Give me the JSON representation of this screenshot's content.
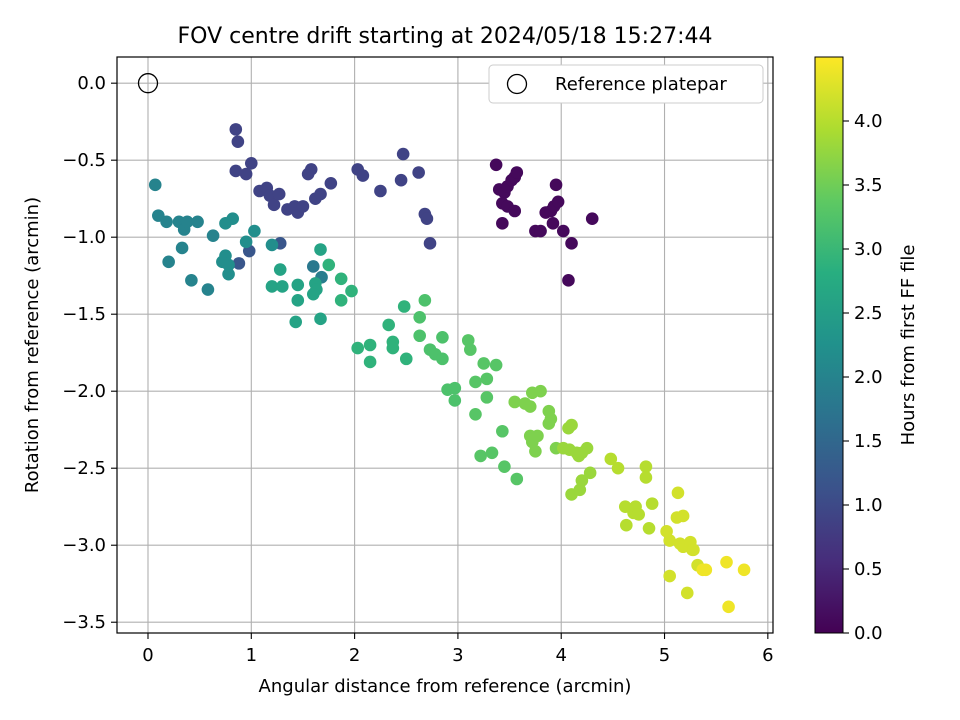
{
  "chart_data": {
    "type": "scatter",
    "title": "FOV centre drift starting at 2024/05/18 15:27:44",
    "xlabel": "Angular distance from reference (arcmin)",
    "ylabel": "Rotation from reference (arcmin)",
    "xlim": [
      -0.3,
      6.05
    ],
    "ylim": [
      -3.57,
      0.17
    ],
    "xticks": [
      "0",
      "1",
      "2",
      "3",
      "4",
      "5",
      "6"
    ],
    "xtick_values": [
      0,
      1,
      2,
      3,
      4,
      5,
      6
    ],
    "yticks": [
      "0.0",
      "−0.5",
      "−1.0",
      "−1.5",
      "−2.0",
      "−2.5",
      "−3.0",
      "−3.5"
    ],
    "ytick_values": [
      0,
      -0.5,
      -1.0,
      -1.5,
      -2.0,
      -2.5,
      -3.0,
      -3.5
    ],
    "grid": true,
    "legend": {
      "label": "Reference platepar",
      "placement": "top-right"
    },
    "reference_point": {
      "x": 0.0,
      "y": 0.0
    },
    "colorbar": {
      "label": "Hours from first FF file",
      "colormap": "viridis",
      "min": 0.0,
      "max": 4.5,
      "ticks": [
        "0.0",
        "0.5",
        "1.0",
        "1.5",
        "2.0",
        "2.5",
        "3.0",
        "3.5",
        "4.0"
      ],
      "tick_values": [
        0,
        0.5,
        1.0,
        1.5,
        2.0,
        2.5,
        3.0,
        3.5,
        4.0
      ]
    },
    "points": [
      [
        3.37,
        -0.53,
        0.1
      ],
      [
        3.4,
        -0.69,
        0.1
      ],
      [
        3.45,
        -0.71,
        0.1
      ],
      [
        3.48,
        -0.67,
        0.1
      ],
      [
        3.52,
        -0.63,
        0.1
      ],
      [
        3.55,
        -0.61,
        0.1
      ],
      [
        3.57,
        -0.58,
        0.1
      ],
      [
        3.43,
        -0.78,
        0.1
      ],
      [
        3.48,
        -0.8,
        0.1
      ],
      [
        3.55,
        -0.83,
        0.1
      ],
      [
        3.43,
        -0.91,
        0.1
      ],
      [
        3.75,
        -0.96,
        0.1
      ],
      [
        3.8,
        -0.96,
        0.1
      ],
      [
        3.85,
        -0.84,
        0.1
      ],
      [
        3.9,
        -0.83,
        0.1
      ],
      [
        3.93,
        -0.8,
        0.1
      ],
      [
        3.95,
        -0.66,
        0.1
      ],
      [
        3.97,
        -0.77,
        0.1
      ],
      [
        3.92,
        -0.91,
        0.1
      ],
      [
        4.02,
        -0.96,
        0.1
      ],
      [
        4.1,
        -1.04,
        0.1
      ],
      [
        4.3,
        -0.88,
        0.1
      ],
      [
        4.07,
        -1.28,
        0.1
      ],
      [
        0.95,
        -0.59,
        0.9
      ],
      [
        1.0,
        -0.52,
        0.9
      ],
      [
        0.85,
        -0.3,
        0.9
      ],
      [
        0.87,
        -0.38,
        0.9
      ],
      [
        0.85,
        -0.57,
        0.9
      ],
      [
        1.08,
        -0.7,
        0.9
      ],
      [
        1.15,
        -0.68,
        0.9
      ],
      [
        1.18,
        -0.73,
        0.9
      ],
      [
        1.22,
        -0.79,
        0.9
      ],
      [
        1.27,
        -0.72,
        0.9
      ],
      [
        1.35,
        -0.82,
        0.9
      ],
      [
        1.42,
        -0.8,
        0.9
      ],
      [
        1.45,
        -0.84,
        0.9
      ],
      [
        1.5,
        -0.8,
        0.9
      ],
      [
        1.55,
        -0.59,
        0.9
      ],
      [
        1.58,
        -0.56,
        0.9
      ],
      [
        1.62,
        -0.75,
        0.9
      ],
      [
        1.67,
        -0.72,
        0.9
      ],
      [
        1.77,
        -0.65,
        0.9
      ],
      [
        2.03,
        -0.56,
        0.9
      ],
      [
        2.08,
        -0.6,
        0.9
      ],
      [
        2.25,
        -0.7,
        0.9
      ],
      [
        2.45,
        -0.63,
        0.9
      ],
      [
        2.47,
        -0.46,
        0.9
      ],
      [
        2.62,
        -0.58,
        0.9
      ],
      [
        2.68,
        -0.85,
        0.9
      ],
      [
        2.7,
        -0.88,
        0.9
      ],
      [
        2.73,
        -1.04,
        0.9
      ],
      [
        1.28,
        -1.04,
        1.2
      ],
      [
        0.98,
        -1.09,
        1.2
      ],
      [
        0.88,
        -1.17,
        1.2
      ],
      [
        0.07,
        -0.66,
        2.0
      ],
      [
        0.1,
        -0.86,
        2.0
      ],
      [
        0.18,
        -0.9,
        2.0
      ],
      [
        0.3,
        -0.9,
        2.0
      ],
      [
        0.35,
        -0.95,
        2.0
      ],
      [
        0.38,
        -0.9,
        2.0
      ],
      [
        0.48,
        -0.9,
        2.0
      ],
      [
        0.2,
        -1.16,
        2.0
      ],
      [
        0.33,
        -1.07,
        2.0
      ],
      [
        0.42,
        -1.28,
        2.0
      ],
      [
        0.58,
        -1.34,
        2.0
      ],
      [
        0.63,
        -0.99,
        2.0
      ],
      [
        1.6,
        -1.19,
        1.8
      ],
      [
        1.68,
        -1.26,
        1.9
      ],
      [
        0.75,
        -0.91,
        2.2
      ],
      [
        0.82,
        -0.88,
        2.2
      ],
      [
        0.75,
        -1.12,
        2.2
      ],
      [
        0.78,
        -1.18,
        2.2
      ],
      [
        0.72,
        -1.16,
        2.2
      ],
      [
        0.78,
        -1.24,
        2.2
      ],
      [
        0.95,
        -1.03,
        2.2
      ],
      [
        1.03,
        -0.96,
        2.2
      ],
      [
        1.2,
        -1.05,
        2.2
      ],
      [
        1.28,
        -1.21,
        2.6
      ],
      [
        1.2,
        -1.32,
        2.6
      ],
      [
        1.3,
        -1.32,
        2.6
      ],
      [
        1.45,
        -1.31,
        2.6
      ],
      [
        1.45,
        -1.41,
        2.6
      ],
      [
        1.62,
        -1.3,
        2.6
      ],
      [
        1.67,
        -1.08,
        2.6
      ],
      [
        1.63,
        -1.34,
        2.6
      ],
      [
        1.6,
        -1.37,
        2.6
      ],
      [
        1.43,
        -1.55,
        2.6
      ],
      [
        1.67,
        -1.53,
        2.6
      ],
      [
        1.75,
        -1.18,
        2.9
      ],
      [
        1.87,
        -1.27,
        2.9
      ],
      [
        1.87,
        -1.41,
        2.9
      ],
      [
        1.97,
        -1.35,
        2.9
      ],
      [
        2.03,
        -1.72,
        2.9
      ],
      [
        2.15,
        -1.7,
        2.9
      ],
      [
        2.15,
        -1.81,
        2.9
      ],
      [
        2.33,
        -1.57,
        2.9
      ],
      [
        2.37,
        -1.68,
        2.9
      ],
      [
        2.37,
        -1.72,
        2.9
      ],
      [
        2.48,
        -1.45,
        2.9
      ],
      [
        2.5,
        -1.79,
        2.9
      ],
      [
        2.63,
        -1.52,
        3.2
      ],
      [
        2.63,
        -1.64,
        3.2
      ],
      [
        2.68,
        -1.41,
        3.2
      ],
      [
        2.73,
        -1.73,
        3.2
      ],
      [
        2.78,
        -1.76,
        3.2
      ],
      [
        2.85,
        -1.79,
        3.2
      ],
      [
        2.85,
        -1.65,
        3.2
      ],
      [
        2.9,
        -1.99,
        3.2
      ],
      [
        2.97,
        -1.98,
        3.2
      ],
      [
        2.97,
        -2.06,
        3.2
      ],
      [
        3.1,
        -1.67,
        3.3
      ],
      [
        3.12,
        -1.73,
        3.3
      ],
      [
        3.17,
        -1.94,
        3.3
      ],
      [
        3.17,
        -2.15,
        3.3
      ],
      [
        3.25,
        -1.82,
        3.3
      ],
      [
        3.28,
        -1.92,
        3.3
      ],
      [
        3.28,
        -2.04,
        3.3
      ],
      [
        3.37,
        -1.83,
        3.3
      ],
      [
        3.22,
        -2.42,
        3.3
      ],
      [
        3.33,
        -2.4,
        3.3
      ],
      [
        3.43,
        -2.26,
        3.3
      ],
      [
        3.45,
        -2.49,
        3.3
      ],
      [
        3.57,
        -2.57,
        3.3
      ],
      [
        3.55,
        -2.07,
        3.6
      ],
      [
        3.65,
        -2.08,
        3.6
      ],
      [
        3.7,
        -2.1,
        3.6
      ],
      [
        3.72,
        -2.01,
        3.6
      ],
      [
        3.7,
        -2.29,
        3.6
      ],
      [
        3.72,
        -2.33,
        3.6
      ],
      [
        3.75,
        -2.39,
        3.6
      ],
      [
        3.8,
        -2.0,
        3.6
      ],
      [
        3.77,
        -2.29,
        3.6
      ],
      [
        3.88,
        -2.13,
        3.6
      ],
      [
        3.88,
        -2.21,
        3.6
      ],
      [
        3.9,
        -2.18,
        3.6
      ],
      [
        3.95,
        -2.37,
        3.6
      ],
      [
        4.02,
        -2.37,
        3.8
      ],
      [
        4.07,
        -2.24,
        3.8
      ],
      [
        4.08,
        -2.38,
        3.8
      ],
      [
        4.1,
        -2.22,
        3.8
      ],
      [
        4.15,
        -2.4,
        3.8
      ],
      [
        4.17,
        -2.42,
        3.8
      ],
      [
        4.2,
        -2.4,
        3.8
      ],
      [
        4.25,
        -2.37,
        3.8
      ],
      [
        4.1,
        -2.67,
        3.8
      ],
      [
        4.18,
        -2.64,
        3.8
      ],
      [
        4.2,
        -2.58,
        3.8
      ],
      [
        4.28,
        -2.53,
        3.8
      ],
      [
        4.48,
        -2.44,
        4.0
      ],
      [
        4.55,
        -2.5,
        4.0
      ],
      [
        4.62,
        -2.75,
        4.0
      ],
      [
        4.63,
        -2.87,
        4.0
      ],
      [
        4.7,
        -2.79,
        4.0
      ],
      [
        4.72,
        -2.75,
        4.0
      ],
      [
        4.75,
        -2.8,
        4.0
      ],
      [
        4.82,
        -2.49,
        4.0
      ],
      [
        4.82,
        -2.56,
        4.0
      ],
      [
        4.85,
        -2.89,
        4.0
      ],
      [
        4.88,
        -2.73,
        4.0
      ],
      [
        5.02,
        -2.91,
        4.2
      ],
      [
        5.05,
        -2.97,
        4.2
      ],
      [
        5.05,
        -3.2,
        4.2
      ],
      [
        5.12,
        -2.82,
        4.2
      ],
      [
        5.13,
        -2.66,
        4.2
      ],
      [
        5.15,
        -2.99,
        4.2
      ],
      [
        5.18,
        -2.81,
        4.2
      ],
      [
        5.18,
        -3.01,
        4.2
      ],
      [
        5.22,
        -3.31,
        4.2
      ],
      [
        5.25,
        -2.98,
        4.2
      ],
      [
        5.27,
        -3.03,
        4.2
      ],
      [
        5.28,
        -3.03,
        4.2
      ],
      [
        5.32,
        -3.13,
        4.2
      ],
      [
        5.37,
        -3.16,
        4.4
      ],
      [
        5.4,
        -3.16,
        4.4
      ],
      [
        5.6,
        -3.11,
        4.4
      ],
      [
        5.62,
        -3.4,
        4.4
      ],
      [
        5.77,
        -3.16,
        4.4
      ]
    ]
  }
}
